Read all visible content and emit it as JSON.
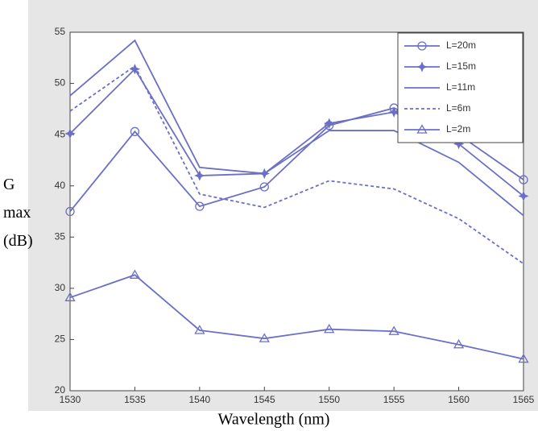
{
  "chart_data": {
    "type": "line",
    "xlabel": "Wavelength (nm)",
    "ylabel": "G max (dB)",
    "x": [
      1530,
      1535,
      1540,
      1545,
      1550,
      1555,
      1560,
      1565
    ],
    "xlim": [
      1530,
      1565
    ],
    "xticks": [
      1530,
      1535,
      1540,
      1545,
      1550,
      1555,
      1560,
      1565
    ],
    "ylim": [
      20,
      55
    ],
    "yticks": [
      20,
      25,
      30,
      35,
      40,
      45,
      50,
      55
    ],
    "legend": "upper right",
    "series": [
      {
        "name": "L=20m",
        "color": "#6b6fc6",
        "marker": "circle",
        "dash": false,
        "values": [
          37.5,
          45.3,
          38,
          39.9,
          45.9,
          47.6,
          45,
          40.6
        ]
      },
      {
        "name": "L=15m",
        "color": "#6b6fc6",
        "marker": "star",
        "dash": false,
        "values": [
          45.1,
          51.4,
          41,
          41.2,
          46.1,
          47.2,
          44.1,
          39
        ]
      },
      {
        "name": "L=11m",
        "color": "#6b6fc6",
        "marker": "none",
        "dash": false,
        "values": [
          48.8,
          54.2,
          41.8,
          41.2,
          45.4,
          45.4,
          42.3,
          37.1
        ]
      },
      {
        "name": "L=6m",
        "color": "#6b6fc6",
        "marker": "none",
        "dash": true,
        "values": [
          47.3,
          51.7,
          39.2,
          37.9,
          40.5,
          39.7,
          36.8,
          32.4
        ]
      },
      {
        "name": "L=2m",
        "color": "#6b6fc6",
        "marker": "triangle",
        "dash": false,
        "values": [
          29.1,
          31.3,
          25.9,
          25.1,
          26,
          25.8,
          24.5,
          23.1
        ]
      }
    ]
  }
}
